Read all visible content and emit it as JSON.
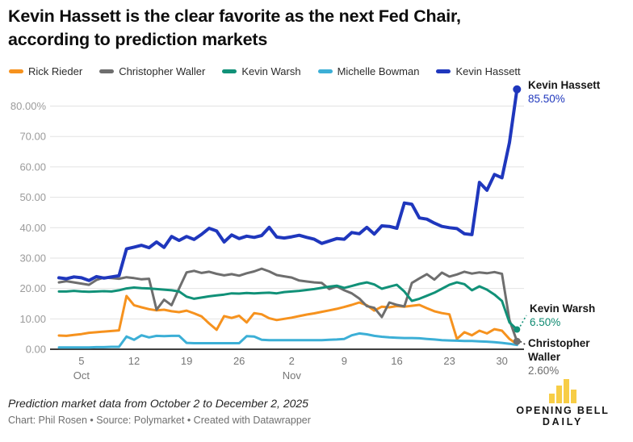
{
  "header": {
    "title_line1": "Kevin Hassett is the clear favorite as the next Fed Chair,",
    "title_line2": "according to prediction markets"
  },
  "legend": [
    {
      "label": "Rick Rieder",
      "color": "#F6921E"
    },
    {
      "label": "Christopher Waller",
      "color": "#6E6E6E"
    },
    {
      "label": "Kevin Warsh",
      "color": "#119178"
    },
    {
      "label": "Michelle Bowman",
      "color": "#3CAFD6"
    },
    {
      "label": "Kevin Hassett",
      "color": "#1F37BD"
    }
  ],
  "chart_data": {
    "type": "line",
    "unit": "percent",
    "x_start_date": "2025-10-02",
    "x_end_date": "2025-12-02",
    "x_frequency": "daily",
    "highlight": "Kevin Hassett",
    "grid": "horizontal",
    "y_axis": {
      "range": [
        0,
        80
      ],
      "ticks": [
        {
          "v": 80,
          "label": "80.00%"
        },
        {
          "v": 70,
          "label": "70.00"
        },
        {
          "v": 60,
          "label": "60.00"
        },
        {
          "v": 50,
          "label": "50.00"
        },
        {
          "v": 40,
          "label": "40.00"
        },
        {
          "v": 30,
          "label": "30.00"
        },
        {
          "v": 20,
          "label": "20.00"
        },
        {
          "v": 10,
          "label": "10.00"
        },
        {
          "v": 0,
          "label": "0.00"
        }
      ]
    },
    "x_axis": {
      "ticks": [
        {
          "day": 3,
          "label": "5",
          "month": "Oct"
        },
        {
          "day": 10,
          "label": "12"
        },
        {
          "day": 17,
          "label": "19"
        },
        {
          "day": 24,
          "label": "26"
        },
        {
          "day": 31,
          "label": "2",
          "month": "Nov"
        },
        {
          "day": 38,
          "label": "9"
        },
        {
          "day": 45,
          "label": "16"
        },
        {
          "day": 52,
          "label": "23"
        },
        {
          "day": 59,
          "label": "30"
        }
      ]
    },
    "series": [
      {
        "name": "Rick Rieder",
        "color": "#F6921E",
        "values": [
          4.5,
          4.4,
          4.7,
          5.0,
          5.4,
          5.6,
          5.8,
          6.0,
          6.2,
          17.5,
          14.5,
          13.8,
          13.2,
          12.8,
          13.0,
          12.5,
          12.2,
          12.7,
          11.8,
          10.8,
          8.5,
          6.4,
          10.9,
          10.3,
          11.0,
          8.8,
          11.9,
          11.5,
          10.2,
          9.6,
          10.0,
          10.4,
          10.9,
          11.4,
          11.8,
          12.3,
          12.8,
          13.3,
          13.9,
          14.6,
          15.4,
          14.5,
          12.7,
          14.0,
          13.8,
          14.2,
          14.0,
          14.3,
          14.6,
          13.5,
          12.5,
          11.9,
          11.5,
          3.4,
          5.6,
          4.6,
          6.1,
          5.2,
          6.6,
          6.1,
          3.4,
          1.7
        ]
      },
      {
        "name": "Michelle Bowman",
        "color": "#3CAFD6",
        "values": [
          0.6,
          0.6,
          0.6,
          0.6,
          0.6,
          0.7,
          0.7,
          0.8,
          0.8,
          4.2,
          3.1,
          4.6,
          3.9,
          4.4,
          4.3,
          4.4,
          4.4,
          2.1,
          2.0,
          2.0,
          2.0,
          2.0,
          2.0,
          2.0,
          2.0,
          4.3,
          4.2,
          3.1,
          3.0,
          3.0,
          3.0,
          3.0,
          3.0,
          3.0,
          3.0,
          3.0,
          3.1,
          3.2,
          3.4,
          4.6,
          5.2,
          4.9,
          4.4,
          4.1,
          3.9,
          3.8,
          3.7,
          3.7,
          3.6,
          3.4,
          3.2,
          3.0,
          2.9,
          2.8,
          2.7,
          2.7,
          2.6,
          2.5,
          2.3,
          2.1,
          1.8,
          1.4
        ]
      },
      {
        "name": "Christopher Waller",
        "color": "#6E6E6E",
        "values": [
          22.0,
          22.4,
          22.0,
          21.6,
          21.2,
          22.8,
          23.6,
          23.4,
          23.2,
          23.7,
          23.4,
          23.0,
          23.2,
          13.0,
          16.3,
          14.5,
          20.0,
          25.3,
          25.8,
          25.1,
          25.5,
          24.8,
          24.3,
          24.7,
          24.2,
          25.0,
          25.6,
          26.5,
          25.6,
          24.4,
          24.0,
          23.6,
          22.6,
          22.3,
          22.0,
          21.8,
          19.8,
          20.7,
          19.4,
          18.4,
          16.7,
          14.2,
          13.6,
          10.6,
          15.4,
          14.6,
          14.1,
          21.8,
          23.3,
          24.7,
          22.9,
          25.2,
          23.9,
          24.6,
          25.5,
          24.9,
          25.3,
          25.0,
          25.4,
          24.8,
          9.6,
          2.6
        ]
      },
      {
        "name": "Kevin Warsh",
        "color": "#119178",
        "values": [
          19.0,
          19.0,
          19.2,
          19.0,
          18.9,
          19.0,
          19.1,
          19.0,
          19.4,
          20.0,
          20.3,
          20.1,
          20.0,
          19.8,
          19.6,
          19.4,
          19.0,
          17.3,
          16.6,
          17.0,
          17.4,
          17.7,
          18.0,
          18.4,
          18.3,
          18.5,
          18.4,
          18.5,
          18.6,
          18.4,
          18.8,
          19.0,
          19.2,
          19.5,
          19.8,
          20.2,
          20.6,
          20.9,
          20.2,
          20.8,
          21.5,
          22.0,
          21.3,
          19.9,
          20.6,
          21.2,
          19.0,
          15.9,
          16.6,
          17.6,
          18.6,
          19.9,
          21.2,
          22.0,
          21.4,
          19.4,
          20.7,
          19.6,
          18.0,
          15.9,
          8.8,
          6.5
        ]
      },
      {
        "name": "Kevin Hassett",
        "color": "#1F37BD",
        "values": [
          23.5,
          23.2,
          23.8,
          23.5,
          22.6,
          23.9,
          23.4,
          23.8,
          24.2,
          33.0,
          33.6,
          34.2,
          33.4,
          35.3,
          33.5,
          37.1,
          35.8,
          37.1,
          36.1,
          37.8,
          39.8,
          38.9,
          35.3,
          37.6,
          36.4,
          37.2,
          36.8,
          37.4,
          40.1,
          36.9,
          36.6,
          37.0,
          37.5,
          36.8,
          36.2,
          34.8,
          35.6,
          36.4,
          36.2,
          38.4,
          38.0,
          40.1,
          37.9,
          40.6,
          40.4,
          39.8,
          48.1,
          47.7,
          43.2,
          42.8,
          41.5,
          40.4,
          40.0,
          39.7,
          38.0,
          37.7,
          54.9,
          52.3,
          57.5,
          56.4,
          68.0,
          85.5
        ]
      }
    ],
    "annotations": [
      {
        "name": "Kevin Hassett",
        "value": "85.50%",
        "color": "#1F37BD"
      },
      {
        "name": "Kevin Warsh",
        "value": "6.50%",
        "color": "#0E8A71"
      },
      {
        "name": "Christopher Waller",
        "value": "2.60%",
        "color": "#6E6E6E"
      }
    ]
  },
  "footer": {
    "note": "Prediction market data from October 2 to December 2, 2025",
    "credit": "Chart: Phil Rosen • Source: Polymarket • Created with Datawrapper"
  },
  "logo": {
    "line1": "OPENING BELL",
    "line2": "DAILY",
    "bar_color": "#F7CD46"
  }
}
